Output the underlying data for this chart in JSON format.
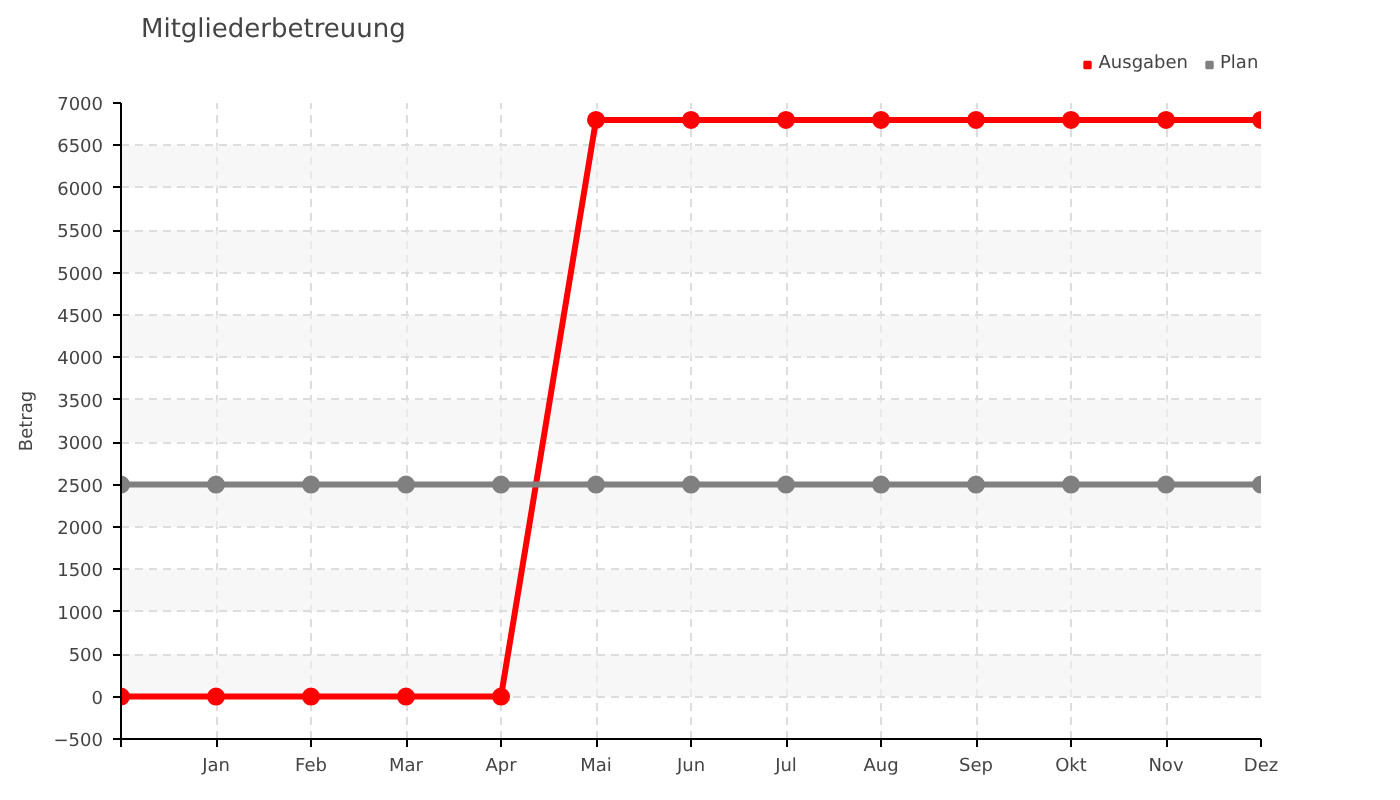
{
  "chart_data": {
    "type": "line",
    "title": "Mitgliederbetreuung",
    "ylabel": "Betrag",
    "categories": [
      null,
      "Jan",
      "Feb",
      "Mar",
      "Apr",
      "Mai",
      "Jun",
      "Jul",
      "Aug",
      "Sep",
      "Okt",
      "Nov",
      "Dez"
    ],
    "series": [
      {
        "name": "Ausgaben",
        "color": "#ff0000",
        "values": [
          0,
          0,
          0,
          0,
          0,
          6800,
          6800,
          6800,
          6800,
          6800,
          6800,
          6800,
          6800
        ]
      },
      {
        "name": "Plan",
        "color": "#808080",
        "values": [
          2500,
          2500,
          2500,
          2500,
          2500,
          2500,
          2500,
          2500,
          2500,
          2500,
          2500,
          2500,
          2500
        ]
      }
    ],
    "ylim": [
      -500,
      7000
    ],
    "yticks": [
      -500,
      0,
      500,
      1000,
      1500,
      2000,
      2500,
      3000,
      3500,
      4000,
      4500,
      5000,
      5500,
      6000,
      6500,
      7000
    ],
    "grid": true,
    "legend": "top right",
    "marker": "circle",
    "line_style": "solid"
  }
}
